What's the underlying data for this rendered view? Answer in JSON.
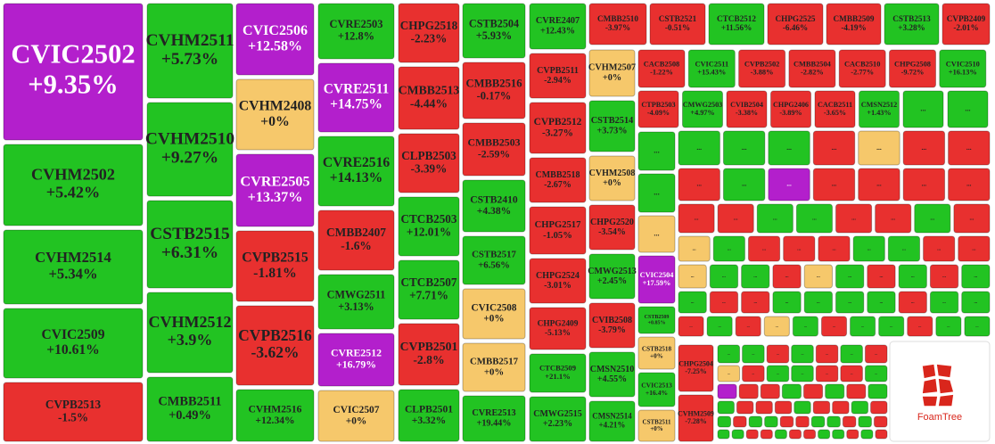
{
  "chart_data": {
    "type": "treemap",
    "palette": {
      "green": "#22c322",
      "red": "#e8302f",
      "purple": "#b31fcc",
      "yellow": "#f6c86b"
    },
    "ellipsis": "...",
    "watermark": "FoamTree",
    "tiles": [
      {
        "label": "CVIC2502",
        "value": 9.35,
        "value_label": "+9.35%",
        "color": "purple"
      },
      {
        "label": "CVHM2502",
        "value": 5.42,
        "value_label": "+5.42%",
        "color": "green"
      },
      {
        "label": "CVHM2514",
        "value": 5.34,
        "value_label": "+5.34%",
        "color": "green"
      },
      {
        "label": "CVIC2509",
        "value": 10.61,
        "value_label": "+10.61%",
        "color": "green"
      },
      {
        "label": "CVPB2513",
        "value": -1.5,
        "value_label": "-1.5%",
        "color": "red"
      },
      {
        "label": "CVHM2511",
        "value": 5.73,
        "value_label": "+5.73%",
        "color": "green"
      },
      {
        "label": "CVHM2510",
        "value": 9.27,
        "value_label": "+9.27%",
        "color": "green"
      },
      {
        "label": "CSTB2515",
        "value": 6.31,
        "value_label": "+6.31%",
        "color": "green"
      },
      {
        "label": "CVHM2512",
        "value": 3.9,
        "value_label": "+3.9%",
        "color": "green"
      },
      {
        "label": "CMBB2511",
        "value": 0.49,
        "value_label": "+0.49%",
        "color": "green"
      },
      {
        "label": "CVIC2506",
        "value": 12.58,
        "value_label": "+12.58%",
        "color": "purple"
      },
      {
        "label": "CVHM2408",
        "value": 0,
        "value_label": "+0%",
        "color": "yellow"
      },
      {
        "label": "CVRE2505",
        "value": 13.37,
        "value_label": "+13.37%",
        "color": "purple"
      },
      {
        "label": "CVPB2515",
        "value": -1.81,
        "value_label": "-1.81%",
        "color": "red"
      },
      {
        "label": "CVPB2516",
        "value": -3.62,
        "value_label": "-3.62%",
        "color": "red"
      },
      {
        "label": "CVHM2516",
        "value": 12.34,
        "value_label": "+12.34%",
        "color": "green"
      },
      {
        "label": "CVRE2503",
        "value": 12.8,
        "value_label": "+12.8%",
        "color": "green"
      },
      {
        "label": "CVRE2511",
        "value": 14.75,
        "value_label": "+14.75%",
        "color": "purple"
      },
      {
        "label": "CVRE2516",
        "value": 14.13,
        "value_label": "+14.13%",
        "color": "green"
      },
      {
        "label": "CMBB2407",
        "value": -1.6,
        "value_label": "-1.6%",
        "color": "red"
      },
      {
        "label": "CMWG2511",
        "value": 3.13,
        "value_label": "+3.13%",
        "color": "green"
      },
      {
        "label": "CVRE2512",
        "value": 16.79,
        "value_label": "+16.79%",
        "color": "purple"
      },
      {
        "label": "CVIC2507",
        "value": 0,
        "value_label": "+0%",
        "color": "yellow"
      },
      {
        "label": "CHPG2518",
        "value": -2.23,
        "value_label": "-2.23%",
        "color": "red"
      },
      {
        "label": "CMBB2513",
        "value": -4.44,
        "value_label": "-4.44%",
        "color": "red"
      },
      {
        "label": "CLPB2503",
        "value": -3.39,
        "value_label": "-3.39%",
        "color": "red"
      },
      {
        "label": "CTCB2503",
        "value": 12.01,
        "value_label": "+12.01%",
        "color": "green"
      },
      {
        "label": "CTCB2507",
        "value": 7.71,
        "value_label": "+7.71%",
        "color": "green"
      },
      {
        "label": "CVPB2501",
        "value": -2.8,
        "value_label": "-2.8%",
        "color": "red"
      },
      {
        "label": "CLPB2501",
        "value": 3.32,
        "value_label": "+3.32%",
        "color": "green"
      },
      {
        "label": "CSTB2504",
        "value": 5.93,
        "value_label": "+5.93%",
        "color": "green"
      },
      {
        "label": "CMBB2516",
        "value": -0.17,
        "value_label": "-0.17%",
        "color": "red"
      },
      {
        "label": "CMBB2503",
        "value": -2.59,
        "value_label": "-2.59%",
        "color": "red"
      },
      {
        "label": "CSTB2410",
        "value": 4.38,
        "value_label": "+4.38%",
        "color": "green"
      },
      {
        "label": "CSTB2517",
        "value": 6.56,
        "value_label": "+6.56%",
        "color": "green"
      },
      {
        "label": "CVIC2508",
        "value": 0,
        "value_label": "+0%",
        "color": "yellow"
      },
      {
        "label": "CMBB2517",
        "value": 0,
        "value_label": "+0%",
        "color": "yellow"
      },
      {
        "label": "CVRE2513",
        "value": 19.44,
        "value_label": "+19.44%",
        "color": "green"
      },
      {
        "label": "CVRE2407",
        "value": 12.43,
        "value_label": "+12.43%",
        "color": "green"
      },
      {
        "label": "CVPB2511",
        "value": -2.94,
        "value_label": "-2.94%",
        "color": "red"
      },
      {
        "label": "CVPB2512",
        "value": -3.27,
        "value_label": "-3.27%",
        "color": "red"
      },
      {
        "label": "CMBB2518",
        "value": -2.67,
        "value_label": "-2.67%",
        "color": "red"
      },
      {
        "label": "CHPG2517",
        "value": -1.05,
        "value_label": "-1.05%",
        "color": "red"
      },
      {
        "label": "CHPG2524",
        "value": -3.01,
        "value_label": "-3.01%",
        "color": "red"
      },
      {
        "label": "CHPG2409",
        "value": -5.13,
        "value_label": "-5.13%",
        "color": "red"
      },
      {
        "label": "CTCB2509",
        "value": 21.1,
        "value_label": "+21.1%",
        "color": "green"
      },
      {
        "label": "CMWG2515",
        "value": 2.23,
        "value_label": "+2.23%",
        "color": "green"
      },
      {
        "label": "CVHM2507",
        "value": 0,
        "value_label": "+0%",
        "color": "yellow"
      },
      {
        "label": "CSTB2514",
        "value": 3.73,
        "value_label": "+3.73%",
        "color": "green"
      },
      {
        "label": "CVHM2508",
        "value": 0,
        "value_label": "+0%",
        "color": "yellow"
      },
      {
        "label": "CHPG2520",
        "value": -3.54,
        "value_label": "-3.54%",
        "color": "red"
      },
      {
        "label": "CMWG2513",
        "value": 2.45,
        "value_label": "+2.45%",
        "color": "green"
      },
      {
        "label": "CVIB2508",
        "value": -3.79,
        "value_label": "-3.79%",
        "color": "red"
      },
      {
        "label": "CMSN2510",
        "value": 4.55,
        "value_label": "+4.55%",
        "color": "green"
      },
      {
        "label": "CMSN2514",
        "value": 4.21,
        "value_label": "+4.21%",
        "color": "green"
      },
      {
        "label": "CMBB2510",
        "value": -3.97,
        "value_label": "-3.97%",
        "color": "red"
      },
      {
        "label": "CSTB2521",
        "value": -0.51,
        "value_label": "-0.51%",
        "color": "red"
      },
      {
        "label": "CTCB2512",
        "value": 11.56,
        "value_label": "+11.56%",
        "color": "green"
      },
      {
        "label": "CHPG2525",
        "value": -6.46,
        "value_label": "-6.46%",
        "color": "red"
      },
      {
        "label": "CMBB2509",
        "value": -4.19,
        "value_label": "-4.19%",
        "color": "red"
      },
      {
        "label": "CSTB2513",
        "value": 3.28,
        "value_label": "+3.28%",
        "color": "green"
      },
      {
        "label": "CVPB2409",
        "value": -2.01,
        "value_label": "-2.01%",
        "color": "red"
      },
      {
        "label": "CACB2508",
        "value": -1.22,
        "value_label": "-1.22%",
        "color": "red"
      },
      {
        "label": "CVIC2511",
        "value": 15.43,
        "value_label": "+15.43%",
        "color": "green"
      },
      {
        "label": "CVPB2502",
        "value": -3.88,
        "value_label": "-3.88%",
        "color": "red"
      },
      {
        "label": "CMBB2504",
        "value": -2.82,
        "value_label": "-2.82%",
        "color": "red"
      },
      {
        "label": "CACB2510",
        "value": -2.77,
        "value_label": "-2.77%",
        "color": "red"
      },
      {
        "label": "CHPG2508",
        "value": -9.72,
        "value_label": "-9.72%",
        "color": "red"
      },
      {
        "label": "CVIC2510",
        "value": 16.13,
        "value_label": "+16.13%",
        "color": "green"
      },
      {
        "label": "CTPB2503",
        "value": -4.09,
        "value_label": "-4.09%",
        "color": "red"
      },
      {
        "label": "CMWG2503",
        "value": 4.97,
        "value_label": "+4.97%",
        "color": "green"
      },
      {
        "label": "CVIB2504",
        "value": -3.38,
        "value_label": "-3.38%",
        "color": "red"
      },
      {
        "label": "CHPG2406",
        "value": -3.89,
        "value_label": "-3.89%",
        "color": "red"
      },
      {
        "label": "CACB2511",
        "value": -3.65,
        "value_label": "-3.65%",
        "color": "red"
      },
      {
        "label": "CMSN2512",
        "value": 1.43,
        "value_label": "+1.43%",
        "color": "green"
      },
      {
        "label": "CVIC2504",
        "value": 17.59,
        "value_label": "+17.59%",
        "color": "purple"
      },
      {
        "label": "CSTB2509",
        "value": 0.85,
        "value_label": "+0.85%",
        "color": "green"
      },
      {
        "label": "CSTB2518",
        "value": 0,
        "value_label": "+0%",
        "color": "yellow"
      },
      {
        "label": "CVIC2513",
        "value": 16.4,
        "value_label": "+16.4%",
        "color": "green"
      },
      {
        "label": "CSTB2511",
        "value": 0,
        "value_label": "+0%",
        "color": "yellow"
      },
      {
        "label": "CHPG2504",
        "value": -7.25,
        "value_label": "-7.25%",
        "color": "red"
      },
      {
        "label": "CVHM2509",
        "value": -7.28,
        "value_label": "-7.28%",
        "color": "red"
      }
    ],
    "more_tiles": [
      "green",
      "green",
      "green",
      "green",
      "yellow",
      "green",
      "green",
      "green",
      "red",
      "yellow",
      "red",
      "red",
      "red",
      "green",
      "purple",
      "red",
      "red",
      "red",
      "red",
      "red",
      "red",
      "green",
      "green",
      "red",
      "red",
      "green",
      "red",
      "yellow",
      "green",
      "red",
      "red",
      "red",
      "green",
      "green",
      "red",
      "red",
      "yellow",
      "green",
      "green",
      "red",
      "yellow",
      "green",
      "red",
      "green",
      "red",
      "green",
      "green",
      "red",
      "red",
      "green",
      "green",
      "green",
      "green",
      "red",
      "green",
      "green",
      "red",
      "green",
      "red",
      "yellow",
      "green",
      "red",
      "green",
      "green",
      "red",
      "green",
      "green",
      "green",
      "green",
      "red",
      "green",
      "red",
      "green",
      "red",
      "yellow",
      "red",
      "green",
      "green",
      "red",
      "red",
      "green",
      "purple",
      "red",
      "red",
      "green",
      "red",
      "green",
      "red",
      "green",
      "green",
      "red",
      "red",
      "red",
      "green",
      "red",
      "red",
      "green",
      "red",
      "green",
      "red",
      "green",
      "green",
      "red",
      "red",
      "green",
      "green",
      "red",
      "green",
      "red",
      "green",
      "green",
      "red",
      "red",
      "green",
      "red",
      "red",
      "green",
      "green",
      "red",
      "green",
      "red"
    ]
  }
}
